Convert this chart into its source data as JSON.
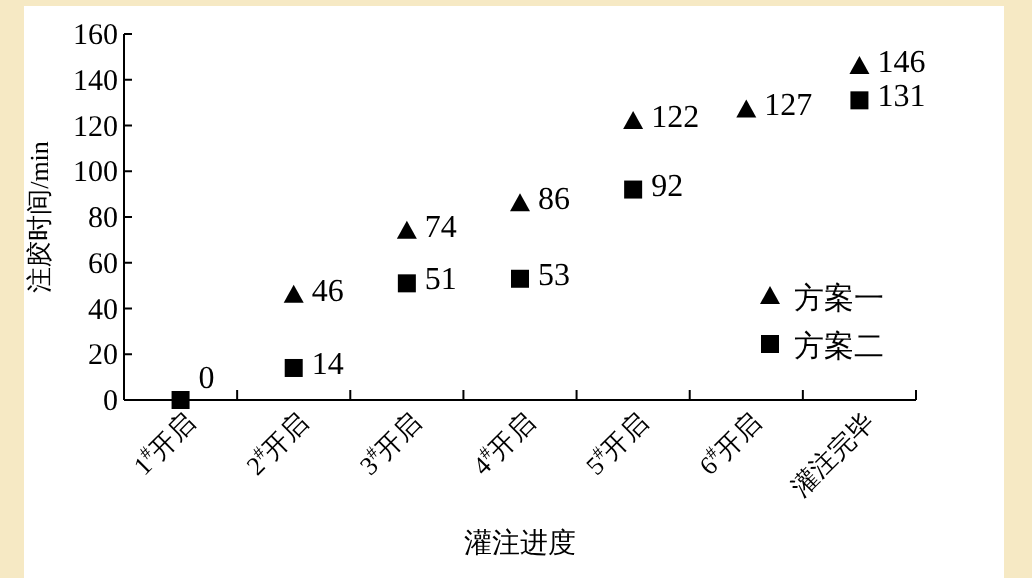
{
  "chart_data": {
    "type": "scatter",
    "xlabel": "灌注进度",
    "ylabel": "注胶时间/min",
    "categories": [
      "1$^{#}$开启",
      "2$^{#}$开启",
      "3$^{#}$开启",
      "4$^{#}$开启",
      "5$^{#}$开启",
      "6$^{#}$开启",
      "灌注完毕"
    ],
    "series": [
      {
        "name": "方案一",
        "color": "#000000",
        "marker": "triangle",
        "values": [
          null,
          46,
          74,
          86,
          122,
          127,
          146
        ],
        "value_labels": [
          null,
          "46",
          "74",
          "86",
          "122",
          "127",
          "146"
        ]
      },
      {
        "name": "方案二",
        "color": "#000000",
        "marker": "square",
        "values": [
          0,
          14,
          51,
          53,
          92,
          null,
          131
        ],
        "value_labels": [
          "0",
          "14",
          "51",
          "53",
          "92",
          null,
          "131"
        ]
      }
    ],
    "ylim": [
      0,
      160
    ],
    "yticks": [
      0,
      20,
      40,
      60,
      80,
      100,
      120,
      140,
      160
    ],
    "grid": false,
    "legend": "right"
  }
}
